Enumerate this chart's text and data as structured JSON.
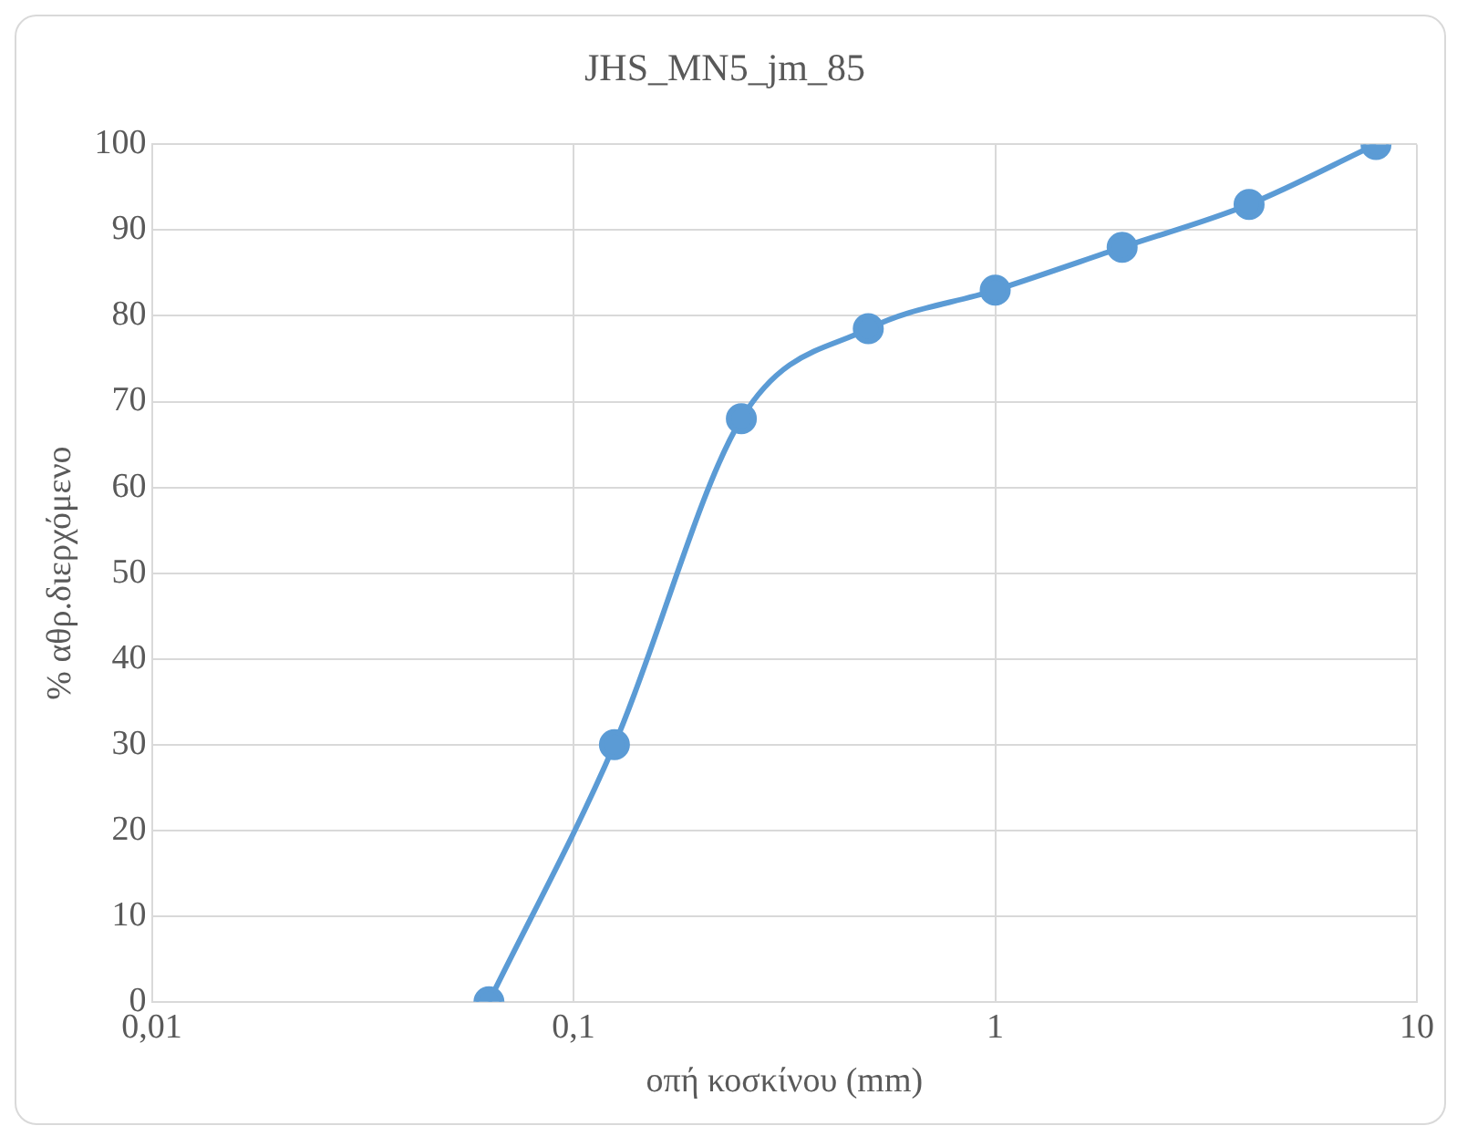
{
  "chart_data": {
    "type": "line",
    "title": "JHS_MN5_jm_85",
    "xlabel": "οπή κοσκίνου (mm)",
    "ylabel": "% αθρ.διερχόμενο",
    "x": [
      0.063,
      0.125,
      0.25,
      0.5,
      1,
      2,
      4,
      8
    ],
    "series": [
      {
        "color": "#5b9bd5",
        "values": [
          0,
          30,
          68,
          78.5,
          83,
          88,
          93,
          100
        ]
      }
    ],
    "log": "x",
    "xlim": [
      0.01,
      10
    ],
    "xticks": [
      {
        "value": 0.01,
        "label": "0,01"
      },
      {
        "value": 0.1,
        "label": "0,1"
      },
      1,
      10
    ],
    "ylim": [
      0,
      100
    ],
    "yticks": [
      0,
      10,
      20,
      30,
      40,
      50,
      60,
      70,
      80,
      90,
      100
    ],
    "grid": true,
    "legend": false,
    "marker": "circle",
    "line_style": "solid"
  }
}
